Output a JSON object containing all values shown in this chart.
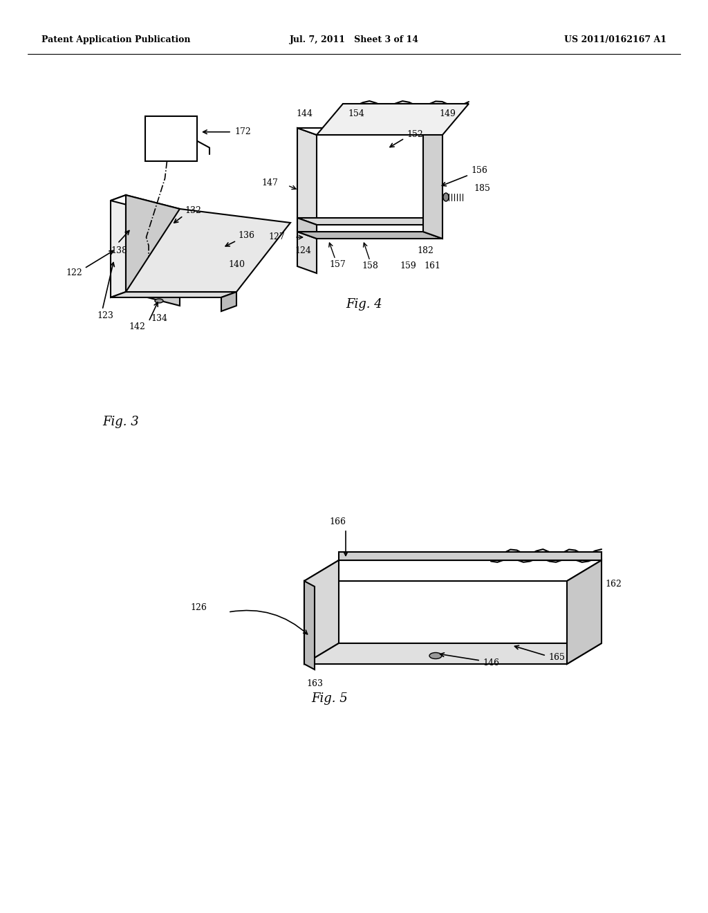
{
  "bg_color": "#ffffff",
  "header_left": "Patent Application Publication",
  "header_center": "Jul. 7, 2011   Sheet 3 of 14",
  "header_right": "US 2011/0162167 A1",
  "fig3_label": "Fig. 3",
  "fig4_label": "Fig. 4",
  "fig5_label": "Fig. 5"
}
